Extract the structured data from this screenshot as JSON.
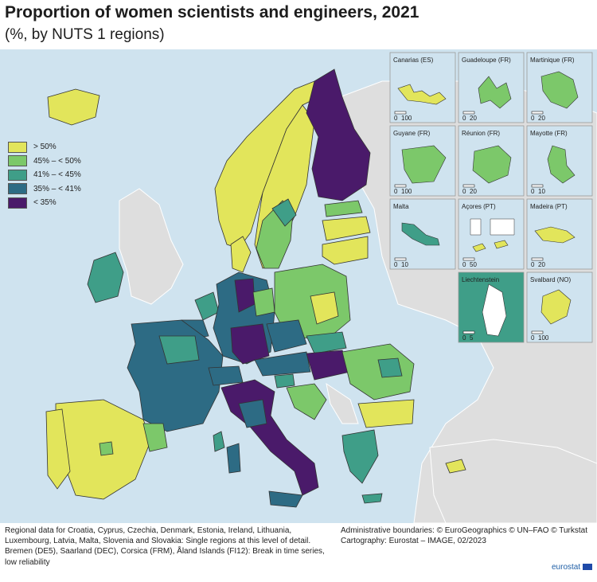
{
  "title": "Proportion of women scientists and engineers, 2021",
  "subtitle": "(%, by NUTS 1 regions)",
  "legend": [
    {
      "label": "> 50%",
      "color": "#e2e55b"
    },
    {
      "label": "45% – < 50%",
      "color": "#7cc86a"
    },
    {
      "label": "41% – < 45%",
      "color": "#3f9e88"
    },
    {
      "label": "35% – < 41%",
      "color": "#2d6b84"
    },
    {
      "label": "< 35%",
      "color": "#4a1a6a"
    }
  ],
  "insets": [
    {
      "name": "Canarias (ES)",
      "scale": "100"
    },
    {
      "name": "Guadeloupe (FR)",
      "scale": "20"
    },
    {
      "name": "Martinique (FR)",
      "scale": "20"
    },
    {
      "name": "Guyane (FR)",
      "scale": "100"
    },
    {
      "name": "Réunion (FR)",
      "scale": "20"
    },
    {
      "name": "Mayotte (FR)",
      "scale": "10"
    },
    {
      "name": "Malta",
      "scale": "10"
    },
    {
      "name": "Açores (PT)",
      "scale": "50"
    },
    {
      "name": "Madeira (PT)",
      "scale": "20"
    },
    {
      "name": "Liechtenstein",
      "scale": "5"
    },
    {
      "name": "Svalbard (NO)",
      "scale": "100"
    }
  ],
  "scale_zero": "0",
  "footnote_left": "Regional data for Croatia, Cyprus, Czechia, Denmark, Estonia, Ireland, Lithuania, Luxembourg, Latvia, Malta, Slovenia and Slovakia: Single regions at this level of detail. Bremen (DE5), Saarland (DEC), Corsica (FRM), Åland Islands (FI12): Break in time series, low reliability",
  "footnote_right_1": "Administrative boundaries: © EuroGeographics © UN–FAO © Turkstat",
  "footnote_right_2": "Cartography: Eurostat – IMAGE, 02/2023",
  "logo": "eurostat"
}
